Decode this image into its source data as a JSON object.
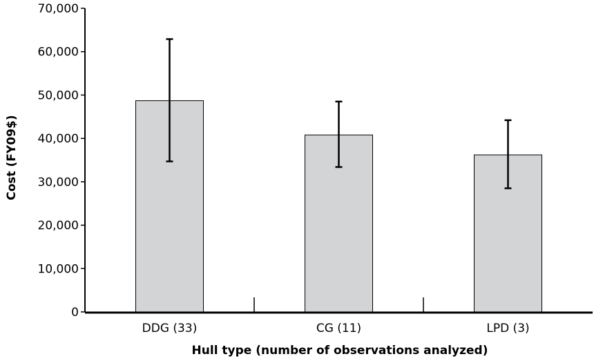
{
  "chart_data": {
    "type": "bar",
    "title": "",
    "xlabel": "Hull type (number of observations analyzed)",
    "ylabel": "Cost (FY09$)",
    "categories": [
      "DDG (33)",
      "CG (11)",
      "LPD (3)"
    ],
    "values": [
      48700,
      40800,
      36200
    ],
    "error_low": [
      34700,
      33400,
      28500
    ],
    "error_high": [
      62900,
      48500,
      44200
    ],
    "ylim": [
      0,
      70000
    ],
    "yticks": [
      0,
      10000,
      20000,
      30000,
      40000,
      50000,
      60000,
      70000
    ],
    "ytick_labels": [
      "0",
      "10,000",
      "20,000",
      "30,000",
      "40,000",
      "50,000",
      "60,000",
      "70,000"
    ],
    "bar_color": "#d3d4d6",
    "grid": false,
    "legend": "none"
  }
}
